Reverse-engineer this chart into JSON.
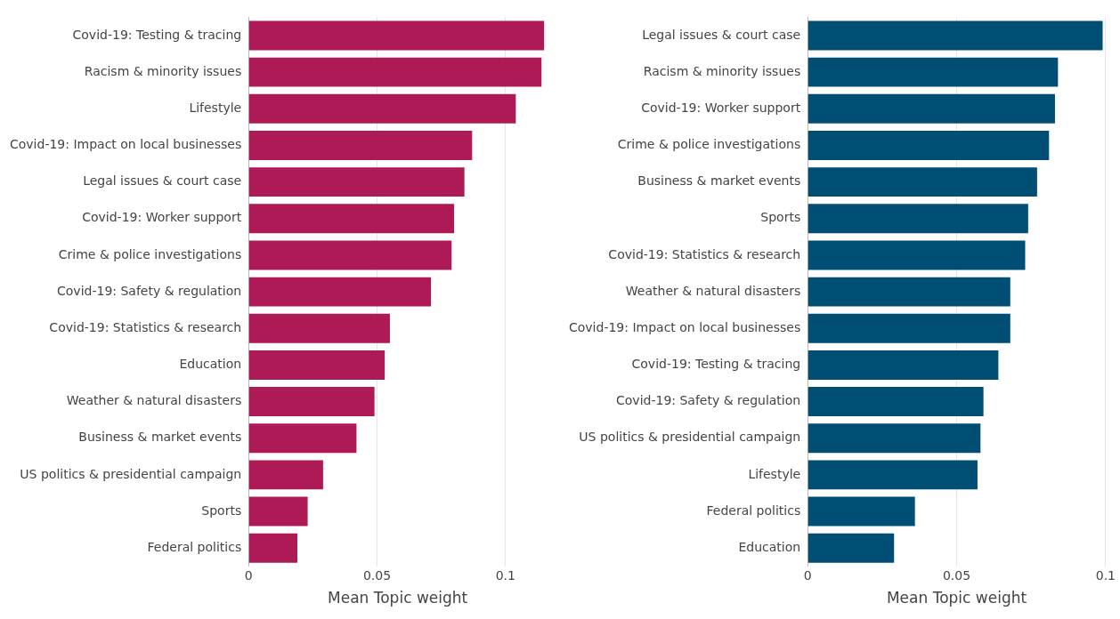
{
  "chart_data": [
    {
      "type": "bar",
      "orientation": "horizontal",
      "xlabel": "Mean Topic weight",
      "categories": [
        "Covid-19: Testing & tracing",
        "Racism & minority issues",
        "Lifestyle",
        "Covid-19: Impact on local businesses",
        "Legal issues & court case",
        "Covid-19: Worker support",
        "Crime & police investigations",
        "Covid-19: Safety & regulation",
        "Covid-19: Statistics & research",
        "Education",
        "Weather & natural disasters",
        "Business & market events",
        "US politics & presidential campaign",
        "Sports",
        "Federal politics"
      ],
      "values": [
        0.115,
        0.114,
        0.104,
        0.087,
        0.084,
        0.08,
        0.079,
        0.071,
        0.055,
        0.053,
        0.049,
        0.042,
        0.029,
        0.023,
        0.019
      ],
      "color": "#ad1a55",
      "xlim": [
        0,
        0.116
      ],
      "xticks": [
        0,
        0.05,
        0.1
      ],
      "grid": "x"
    },
    {
      "type": "bar",
      "orientation": "horizontal",
      "xlabel": "Mean Topic weight",
      "categories": [
        "Legal issues & court case",
        "Racism & minority issues",
        "Covid-19: Worker support",
        "Crime & police investigations",
        "Business & market events",
        "Sports",
        "Covid-19: Statistics & research",
        "Weather & natural disasters",
        "Covid-19: Impact on local businesses",
        "Covid-19: Testing & tracing",
        "Covid-19: Safety & regulation",
        "US politics & presidential campaign",
        "Lifestyle",
        "Federal politics",
        "Education"
      ],
      "values": [
        0.099,
        0.084,
        0.083,
        0.081,
        0.077,
        0.074,
        0.073,
        0.068,
        0.068,
        0.064,
        0.059,
        0.058,
        0.057,
        0.036,
        0.029
      ],
      "color": "#004e74",
      "xlim": [
        0,
        0.1
      ],
      "xticks": [
        0,
        0.05,
        0.1
      ],
      "grid": "x"
    }
  ]
}
